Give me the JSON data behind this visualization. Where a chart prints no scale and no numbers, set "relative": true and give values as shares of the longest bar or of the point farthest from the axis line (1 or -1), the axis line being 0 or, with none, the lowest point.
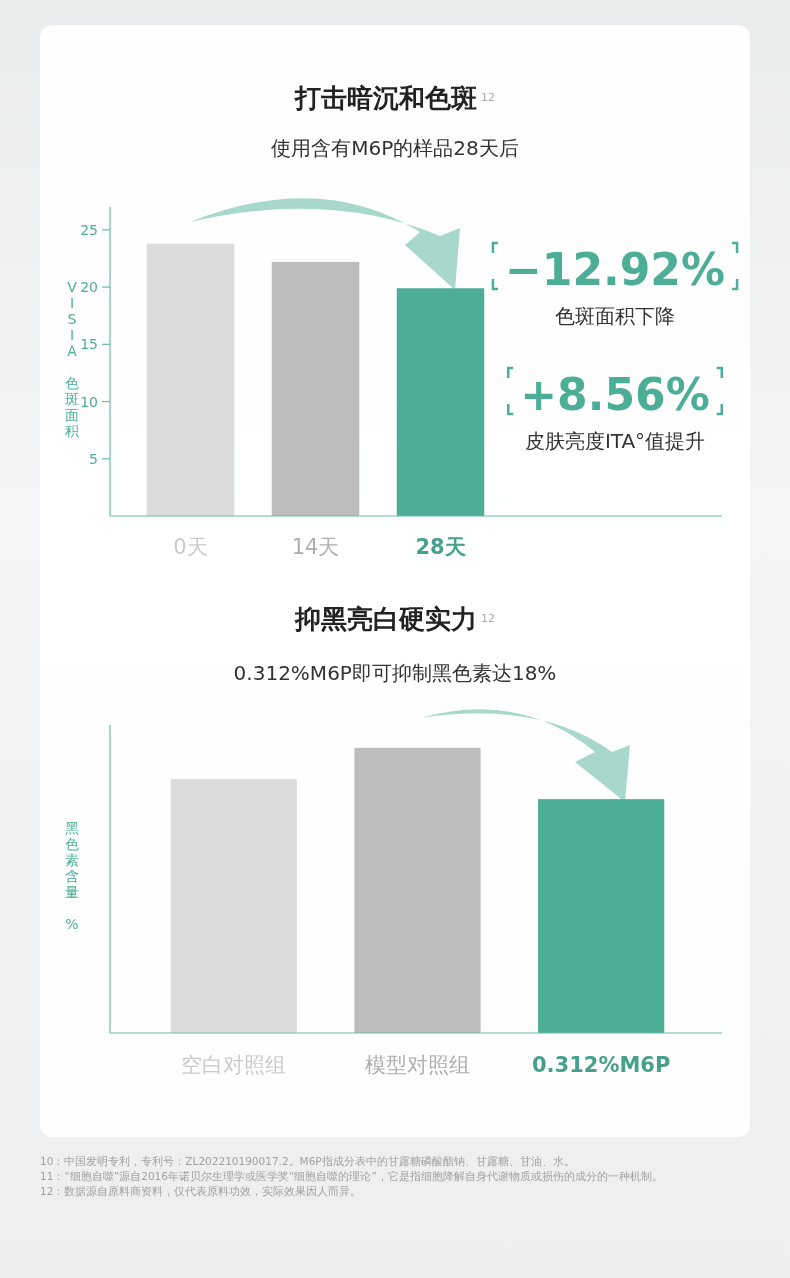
{
  "chart_data": [
    {
      "type": "bar",
      "title": "打击暗沉和色斑$^{12}$",
      "subtitle": "使用含有M6P的样品28天后",
      "ylabel": "VISIA 色斑面积",
      "categories": [
        "0天",
        "14天",
        "28天"
      ],
      "values": [
        23.8,
        22.2,
        19.9
      ],
      "colors": [
        "#dcdcdc",
        "#bdbdbd",
        "#4dae98"
      ],
      "ylim": [
        0,
        27
      ],
      "yticks": [
        5,
        10,
        15,
        20,
        25
      ],
      "annotations": [
        "−12.92%",
        "色斑面积下降",
        "+8.56%",
        "皮肤亮度ITA°值提升"
      ]
    },
    {
      "type": "bar",
      "title": "抑黑亮白硬实力$^{12}$",
      "subtitle": "0.312%M6P即可抑制黑色素达18%",
      "ylabel": "黑色素含量 %",
      "categories": [
        "空白对照组",
        "模型对照组",
        "0.312%M6P"
      ],
      "values": [
        0.89,
        1,
        0.82
      ],
      "colors": [
        "#dcdcdc",
        "#bdbdbd",
        "#4dae98"
      ],
      "relative": true,
      "annotations": [
        "10：中国发明专利，专利号：ZL202210190017.2。M6P指成分表中的甘露糖磷酸酯钠、甘露糖、甘油、水。",
        "11：“细胞自噬”源自2016年诺贝尔生理学或医学奖“细胞自噬的理论”，它是指细胞降解自身代谢物质或损伤的成分的一种机制。",
        "12：数据源自原料商资料，仅代表原料功效，实际效果因人而异。"
      ]
    }
  ]
}
